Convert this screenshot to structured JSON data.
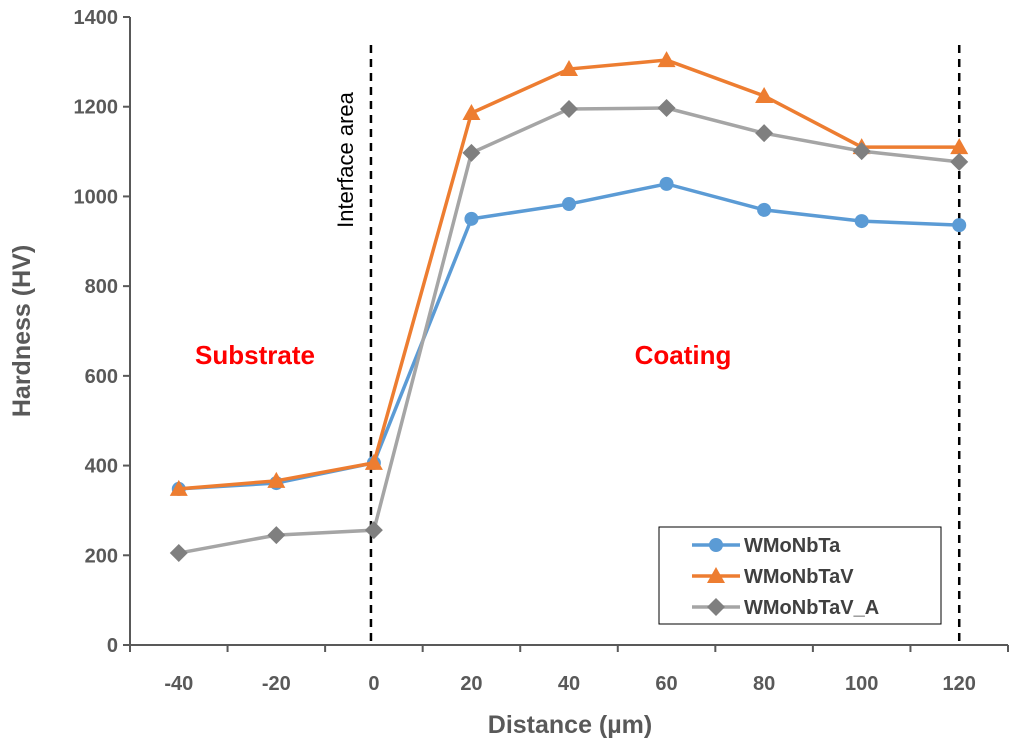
{
  "chart_data": {
    "type": "line",
    "title": "",
    "xlabel": "Distance (µm)",
    "ylabel": "Hardness (HV)",
    "xlim": [
      -50,
      130
    ],
    "ylim": [
      0,
      1400
    ],
    "xticks": [
      -40,
      -20,
      0,
      20,
      40,
      60,
      80,
      100,
      120
    ],
    "yticks": [
      0,
      200,
      400,
      600,
      800,
      1000,
      1200,
      1400
    ],
    "grid": false,
    "legend_position": "bottom-right",
    "x": [
      -40,
      -20,
      0,
      20,
      40,
      60,
      80,
      100,
      120
    ],
    "series": [
      {
        "name": "WMoNbTa",
        "color": "#5b9bd5",
        "marker": "circle",
        "values": [
          348,
          361,
          406,
          950,
          983,
          1028,
          970,
          945,
          936
        ]
      },
      {
        "name": "WMoNbTaV",
        "color": "#ed7d31",
        "marker": "triangle",
        "values": [
          348,
          366,
          406,
          1186,
          1284,
          1304,
          1224,
          1110,
          1110
        ]
      },
      {
        "name": "WMoNbTaV_A",
        "color": "#a5a5a5",
        "marker": "diamond",
        "values": [
          205,
          245,
          256,
          1097,
          1195,
          1197,
          1141,
          1101,
          1077
        ]
      }
    ],
    "annotations": {
      "substrate": "Substrate",
      "coating": "Coating",
      "interface": "Interface area"
    },
    "reference_lines_x": [
      -0.6,
      120
    ]
  }
}
